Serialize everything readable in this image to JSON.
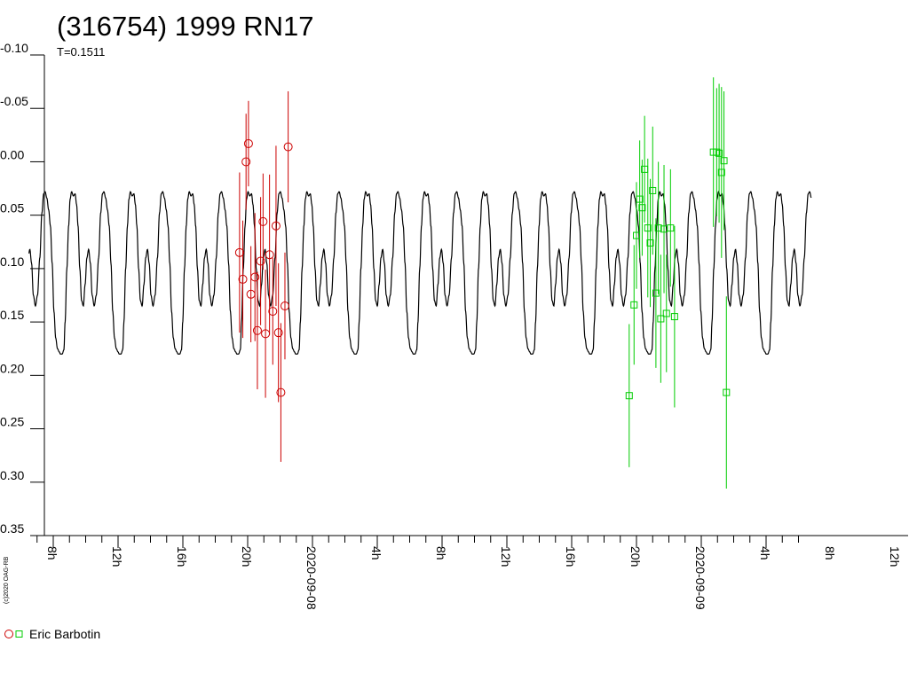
{
  "chart_data": {
    "type": "scatter",
    "title": "(316754) 1999 RN17",
    "subtitle": "T=0.1511",
    "copyright": "(c)2020 OAG-RB",
    "y_axis": {
      "range": [
        -0.1,
        0.35
      ],
      "inverted": true,
      "ticks": [
        "-0.10",
        "-0.05",
        "0.00",
        "0.05",
        "0.10",
        "0.15",
        "0.20",
        "0.25",
        "0.30",
        "0.35"
      ]
    },
    "x_axis": {
      "range_hours": [
        6.5,
        54.8
      ],
      "tick_labels": [
        {
          "t": 8,
          "label": "8h"
        },
        {
          "t": 12,
          "label": "12h"
        },
        {
          "t": 16,
          "label": "16h"
        },
        {
          "t": 20,
          "label": "20h"
        },
        {
          "t": 24,
          "label": "2020-09-08"
        },
        {
          "t": 28,
          "label": "4h"
        },
        {
          "t": 32,
          "label": "8h"
        },
        {
          "t": 36,
          "label": "12h"
        },
        {
          "t": 40,
          "label": "16h"
        },
        {
          "t": 44,
          "label": "20h"
        },
        {
          "t": 48,
          "label": "2020-09-09"
        },
        {
          "t": 52,
          "label": "4h"
        },
        {
          "t": 56,
          "label": "8h"
        },
        {
          "t": 60,
          "label": "12h"
        }
      ]
    },
    "model_curve": {
      "period_hours": 3.63,
      "color": "#000000"
    },
    "legend": [
      {
        "label": "Eric Barbotin",
        "marker": "circle",
        "color": "#cc0000"
      },
      {
        "label": "",
        "marker": "square",
        "color": "#00cc00"
      }
    ],
    "series": [
      {
        "name": "Eric Barbotin",
        "marker": "circle",
        "color": "#cc0000",
        "points": [
          {
            "t": 19.5,
            "y": 0.085,
            "err": 0.075
          },
          {
            "t": 19.7,
            "y": 0.11,
            "err": 0.055
          },
          {
            "t": 19.9,
            "y": 0.0,
            "err": 0.045
          },
          {
            "t": 20.05,
            "y": -0.017,
            "err": 0.04
          },
          {
            "t": 20.2,
            "y": 0.124,
            "err": 0.045
          },
          {
            "t": 20.45,
            "y": 0.108,
            "err": 0.06
          },
          {
            "t": 20.6,
            "y": 0.158,
            "err": 0.055
          },
          {
            "t": 20.8,
            "y": 0.093,
            "err": 0.06
          },
          {
            "t": 20.95,
            "y": 0.056,
            "err": 0.045
          },
          {
            "t": 21.1,
            "y": 0.161,
            "err": 0.06
          },
          {
            "t": 21.35,
            "y": 0.087,
            "err": 0.075
          },
          {
            "t": 21.55,
            "y": 0.14,
            "err": 0.05
          },
          {
            "t": 21.75,
            "y": 0.06,
            "err": 0.075
          },
          {
            "t": 21.9,
            "y": 0.16,
            "err": 0.065
          },
          {
            "t": 22.05,
            "y": 0.216,
            "err": 0.065
          },
          {
            "t": 22.3,
            "y": 0.135,
            "err": 0.05
          },
          {
            "t": 22.5,
            "y": -0.014,
            "err": 0.052
          }
        ]
      },
      {
        "name": "",
        "marker": "square",
        "color": "#00cc00",
        "points": [
          {
            "t": 43.55,
            "y": 0.219,
            "err": 0.067
          },
          {
            "t": 43.85,
            "y": 0.134,
            "err": 0.056
          },
          {
            "t": 44.0,
            "y": 0.069,
            "err": 0.05
          },
          {
            "t": 44.2,
            "y": 0.035,
            "err": 0.055
          },
          {
            "t": 44.35,
            "y": 0.043,
            "err": 0.045
          },
          {
            "t": 44.5,
            "y": 0.007,
            "err": 0.05
          },
          {
            "t": 44.7,
            "y": 0.062,
            "err": 0.065
          },
          {
            "t": 44.85,
            "y": 0.076,
            "err": 0.06
          },
          {
            "t": 45.0,
            "y": 0.027,
            "err": 0.06
          },
          {
            "t": 45.2,
            "y": 0.123,
            "err": 0.07
          },
          {
            "t": 45.35,
            "y": 0.062,
            "err": 0.062
          },
          {
            "t": 45.5,
            "y": 0.147,
            "err": 0.06
          },
          {
            "t": 45.7,
            "y": 0.063,
            "err": 0.06
          },
          {
            "t": 45.85,
            "y": 0.142,
            "err": 0.055
          },
          {
            "t": 46.1,
            "y": 0.062,
            "err": 0.055
          },
          {
            "t": 46.35,
            "y": 0.145,
            "err": 0.085
          },
          {
            "t": 48.75,
            "y": -0.009,
            "err": 0.07
          },
          {
            "t": 48.95,
            "y": -0.009,
            "err": 0.06
          },
          {
            "t": 49.1,
            "y": -0.008,
            "err": 0.065
          },
          {
            "t": 49.25,
            "y": 0.01,
            "err": 0.08
          },
          {
            "t": 49.4,
            "y": -0.001,
            "err": 0.065
          },
          {
            "t": 49.55,
            "y": 0.216,
            "err": 0.09
          }
        ]
      }
    ]
  }
}
